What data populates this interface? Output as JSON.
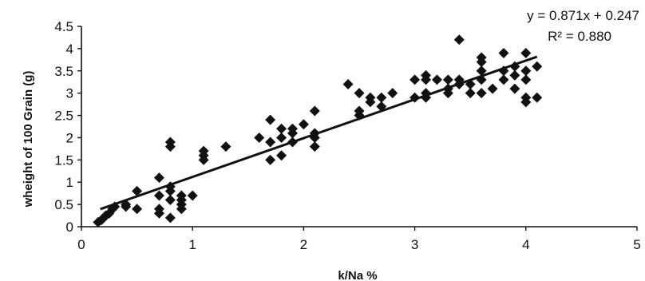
{
  "chart_data": {
    "type": "scatter",
    "title": "",
    "xlabel": "k/Na %",
    "ylabel": "wheight  of  100 Grain (g)",
    "xlim": [
      0,
      5
    ],
    "ylim": [
      0,
      4.5
    ],
    "x_ticks": [
      "0",
      "1",
      "2",
      "3",
      "4",
      "5"
    ],
    "y_ticks": [
      "0",
      "0.5",
      "1",
      "1.5",
      "2",
      "2.5",
      "3",
      "3.5",
      "4",
      "4.5"
    ],
    "grid": false,
    "legend": "none",
    "marker": "diamond",
    "marker_color": "#111111",
    "annotations": {
      "equation": "y = 0.871x + 0.247",
      "r_squared": "R² = 0.880"
    },
    "trendline": {
      "slope": 0.871,
      "intercept": 0.247,
      "x_range": [
        0.17,
        4.1
      ]
    },
    "points": [
      [
        0.15,
        0.1
      ],
      [
        0.18,
        0.15
      ],
      [
        0.2,
        0.2
      ],
      [
        0.22,
        0.25
      ],
      [
        0.25,
        0.3
      ],
      [
        0.28,
        0.4
      ],
      [
        0.3,
        0.45
      ],
      [
        0.4,
        0.45
      ],
      [
        0.4,
        0.5
      ],
      [
        0.5,
        0.4
      ],
      [
        0.5,
        0.8
      ],
      [
        0.7,
        1.1
      ],
      [
        0.7,
        0.7
      ],
      [
        0.7,
        0.4
      ],
      [
        0.7,
        0.3
      ],
      [
        0.8,
        0.9
      ],
      [
        0.8,
        0.8
      ],
      [
        0.8,
        0.6
      ],
      [
        0.8,
        0.2
      ],
      [
        0.8,
        1.8
      ],
      [
        0.8,
        1.9
      ],
      [
        0.9,
        0.7
      ],
      [
        0.9,
        0.6
      ],
      [
        0.9,
        0.5
      ],
      [
        0.9,
        0.4
      ],
      [
        1.0,
        0.7
      ],
      [
        1.1,
        1.7
      ],
      [
        1.1,
        1.6
      ],
      [
        1.1,
        1.5
      ],
      [
        1.3,
        1.8
      ],
      [
        1.6,
        2.0
      ],
      [
        1.7,
        2.4
      ],
      [
        1.7,
        1.9
      ],
      [
        1.7,
        1.5
      ],
      [
        1.8,
        2.2
      ],
      [
        1.8,
        2.0
      ],
      [
        1.8,
        1.6
      ],
      [
        1.9,
        2.2
      ],
      [
        1.9,
        2.1
      ],
      [
        1.9,
        1.9
      ],
      [
        2.0,
        2.3
      ],
      [
        2.1,
        2.6
      ],
      [
        2.1,
        2.1
      ],
      [
        2.1,
        2.0
      ],
      [
        2.1,
        1.8
      ],
      [
        2.4,
        3.2
      ],
      [
        2.5,
        3.0
      ],
      [
        2.5,
        2.6
      ],
      [
        2.5,
        2.5
      ],
      [
        2.6,
        2.9
      ],
      [
        2.6,
        2.8
      ],
      [
        2.7,
        2.9
      ],
      [
        2.7,
        2.7
      ],
      [
        2.8,
        3.0
      ],
      [
        3.0,
        3.3
      ],
      [
        3.0,
        2.9
      ],
      [
        3.1,
        3.4
      ],
      [
        3.1,
        3.3
      ],
      [
        3.1,
        3.0
      ],
      [
        3.1,
        2.9
      ],
      [
        3.2,
        3.3
      ],
      [
        3.3,
        3.3
      ],
      [
        3.3,
        3.1
      ],
      [
        3.3,
        3.0
      ],
      [
        3.4,
        4.2
      ],
      [
        3.4,
        3.3
      ],
      [
        3.4,
        3.2
      ],
      [
        3.5,
        3.2
      ],
      [
        3.5,
        3.0
      ],
      [
        3.6,
        3.8
      ],
      [
        3.6,
        3.7
      ],
      [
        3.6,
        3.5
      ],
      [
        3.6,
        3.3
      ],
      [
        3.6,
        3.0
      ],
      [
        3.7,
        3.1
      ],
      [
        3.8,
        3.9
      ],
      [
        3.8,
        3.5
      ],
      [
        3.8,
        3.3
      ],
      [
        3.9,
        3.6
      ],
      [
        3.9,
        3.4
      ],
      [
        3.9,
        3.1
      ],
      [
        4.0,
        3.9
      ],
      [
        4.0,
        3.5
      ],
      [
        4.0,
        3.3
      ],
      [
        4.0,
        2.9
      ],
      [
        4.0,
        2.8
      ],
      [
        4.1,
        3.6
      ],
      [
        4.1,
        2.9
      ]
    ]
  }
}
